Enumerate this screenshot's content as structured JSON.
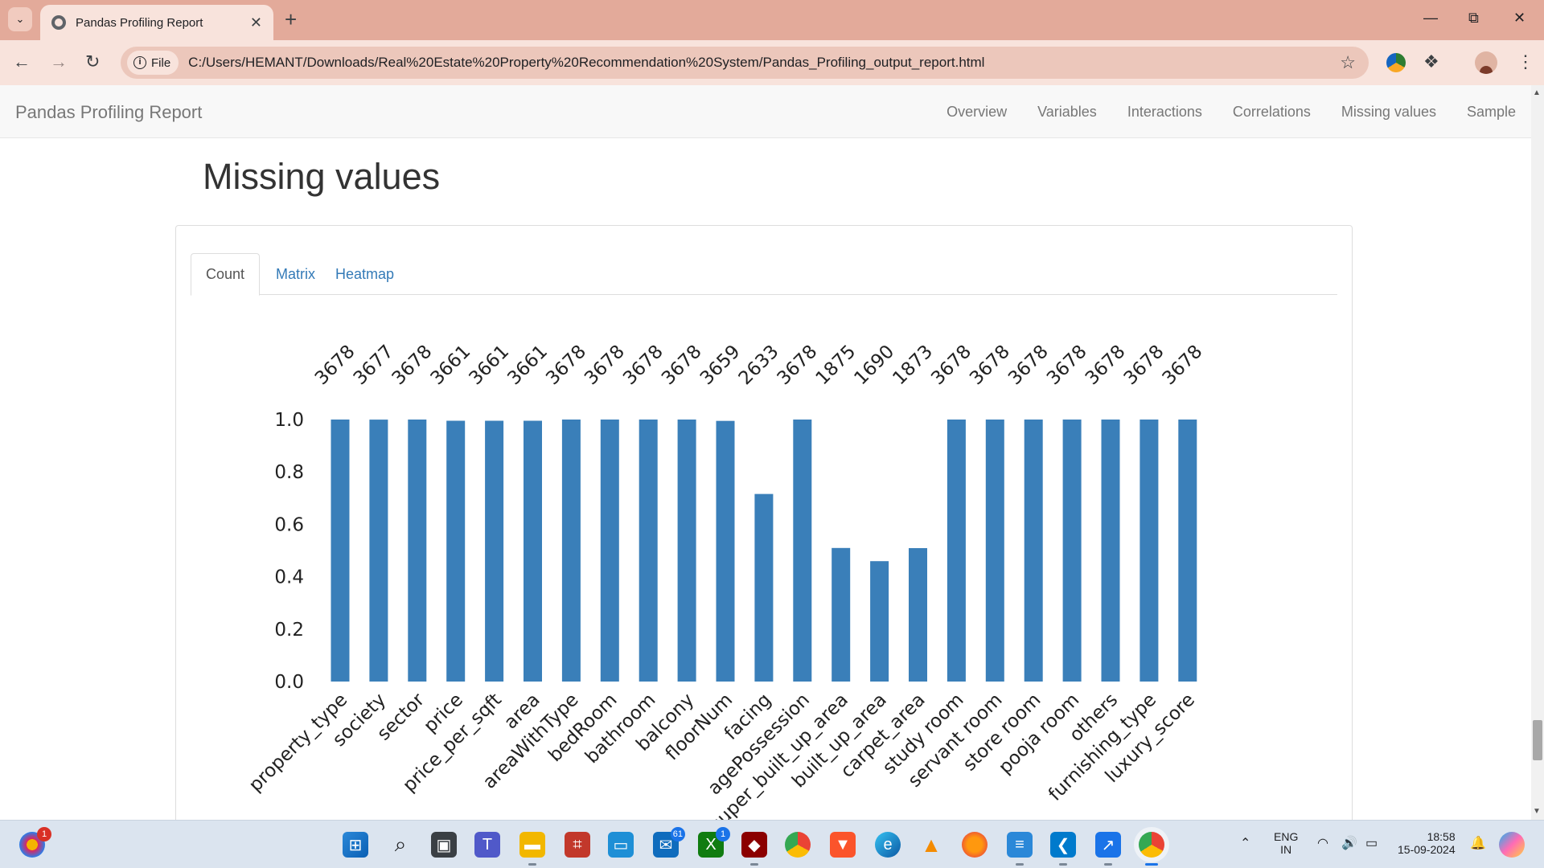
{
  "browser": {
    "tab_title": "Pandas Profiling Report",
    "site_chip": "File",
    "url": "C:/Users/HEMANT/Downloads/Real%20Estate%20Property%20Recommendation%20System/Pandas_Profiling_output_report.html"
  },
  "navbar": {
    "brand": "Pandas Profiling Report",
    "links": [
      "Overview",
      "Variables",
      "Interactions",
      "Correlations",
      "Missing values",
      "Sample"
    ]
  },
  "section": {
    "title": "Missing values",
    "tabs": [
      "Count",
      "Matrix",
      "Heatmap"
    ],
    "active_tab": "Count"
  },
  "chart_data": {
    "type": "bar",
    "categories": [
      "property_type",
      "society",
      "sector",
      "price",
      "price_per_sqft",
      "area",
      "areaWithType",
      "bedRoom",
      "bathroom",
      "balcony",
      "floorNum",
      "facing",
      "agePossession",
      "super_built_up_area",
      "built_up_area",
      "carpet_area",
      "study room",
      "servant room",
      "store room",
      "pooja room",
      "others",
      "furnishing_type",
      "luxury_score"
    ],
    "counts": [
      3678,
      3677,
      3678,
      3661,
      3661,
      3661,
      3678,
      3678,
      3678,
      3678,
      3659,
      2633,
      3678,
      1875,
      1690,
      1873,
      3678,
      3678,
      3678,
      3678,
      3678,
      3678,
      3678
    ],
    "total": 3678,
    "ylim": [
      0,
      1.0
    ],
    "yticks": [
      "0.0",
      "0.2",
      "0.4",
      "0.6",
      "0.8",
      "1.0"
    ],
    "bar_color": "#3a7fb9",
    "xlabel": "",
    "ylabel": "",
    "title": ""
  },
  "taskbar": {
    "notification_badge": "1",
    "mail_badge": "61",
    "xbox_badge": "1",
    "lang_line1": "ENG",
    "lang_line2": "IN",
    "time": "18:58",
    "date": "15-09-2024"
  },
  "colors": {
    "tabbar": "#e3aa9a",
    "toolbar": "#f8e3dc",
    "link": "#337ab7"
  }
}
